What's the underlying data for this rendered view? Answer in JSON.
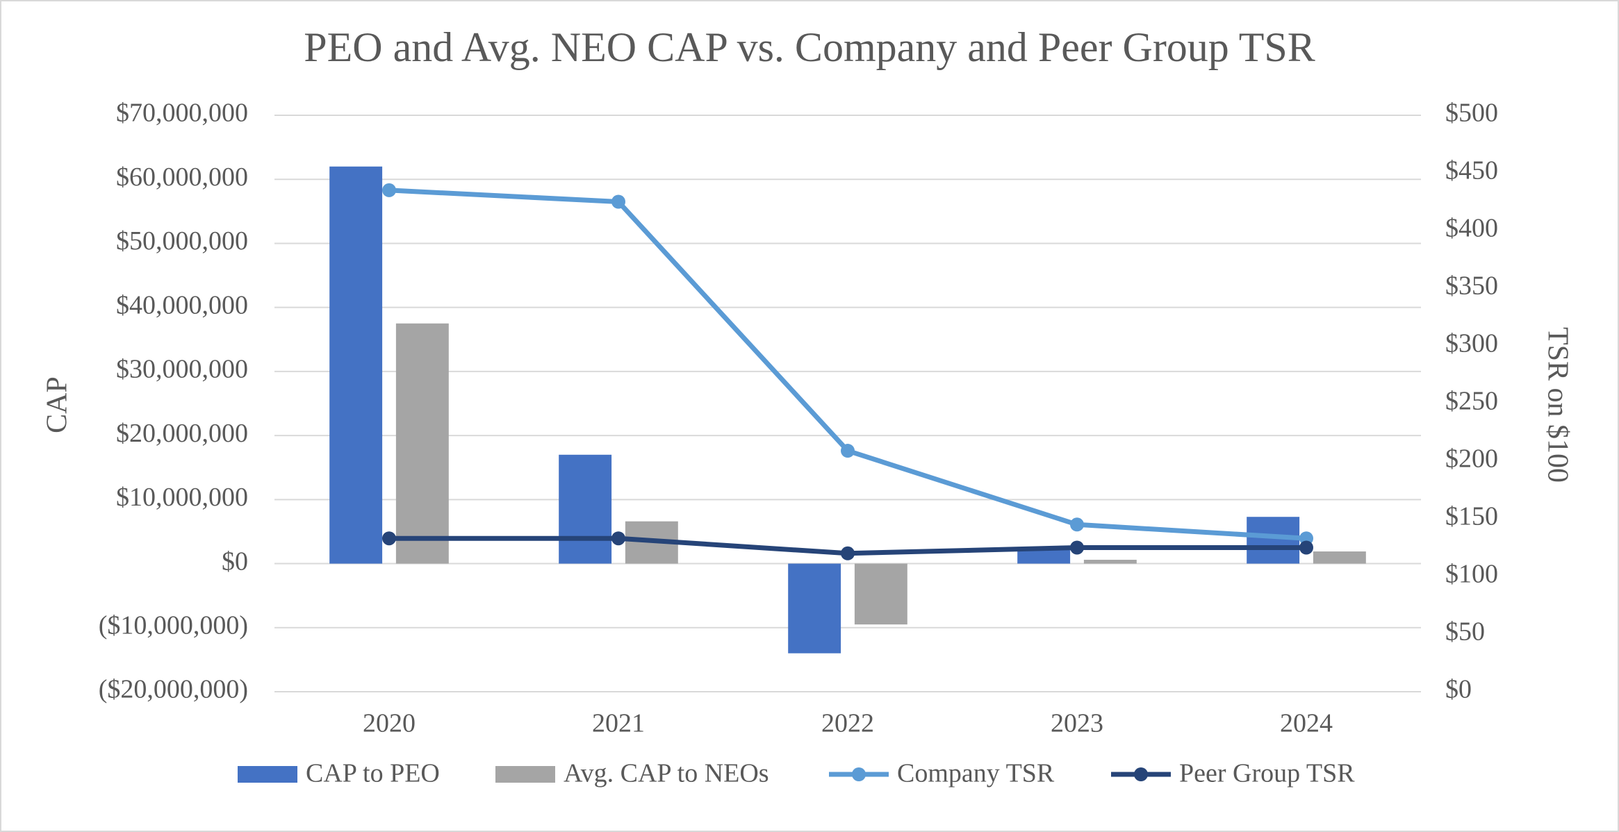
{
  "chart_data": {
    "type": "bar",
    "title": "PEO and Avg. NEO CAP vs. Company and Peer Group TSR",
    "y_label": "CAP",
    "y2_label": "TSR on $100",
    "categories": [
      "2020",
      "2021",
      "2022",
      "2023",
      "2024"
    ],
    "series": [
      {
        "name": "CAP to PEO",
        "type": "bar",
        "color": "#4472c4",
        "values": [
          62000000,
          17000000,
          -14000000,
          2500000,
          7300000
        ]
      },
      {
        "name": "Avg. CAP to NEOs",
        "type": "bar",
        "color": "#a5a5a5",
        "values": [
          37500000,
          6600000,
          -9500000,
          600000,
          1900000
        ]
      },
      {
        "name": "Company TSR",
        "type": "line",
        "axis": "y2",
        "color": "#5b9bd5",
        "values": [
          435,
          425,
          209,
          145,
          133
        ]
      },
      {
        "name": "Peer Group TSR",
        "type": "line",
        "axis": "y2",
        "color": "#264478",
        "values": [
          133,
          133,
          120,
          125,
          125
        ]
      }
    ],
    "ylim": [
      -20000000,
      70000000
    ],
    "yticks": [
      {
        "value": -20000000,
        "label": "($20,000,000)"
      },
      {
        "value": -10000000,
        "label": "($10,000,000)"
      },
      {
        "value": 0,
        "label": "$0"
      },
      {
        "value": 10000000,
        "label": "$10,000,000"
      },
      {
        "value": 20000000,
        "label": "$20,000,000"
      },
      {
        "value": 30000000,
        "label": "$30,000,000"
      },
      {
        "value": 40000000,
        "label": "$40,000,000"
      },
      {
        "value": 50000000,
        "label": "$50,000,000"
      },
      {
        "value": 60000000,
        "label": "$60,000,000"
      },
      {
        "value": 70000000,
        "label": "$70,000,000"
      }
    ],
    "y2lim": [
      0,
      500
    ],
    "y2ticks": [
      {
        "value": 0,
        "label": "$0"
      },
      {
        "value": 50,
        "label": "$50"
      },
      {
        "value": 100,
        "label": "$100"
      },
      {
        "value": 150,
        "label": "$150"
      },
      {
        "value": 200,
        "label": "$200"
      },
      {
        "value": 250,
        "label": "$250"
      },
      {
        "value": 300,
        "label": "$300"
      },
      {
        "value": 350,
        "label": "$350"
      },
      {
        "value": 400,
        "label": "$400"
      },
      {
        "value": 450,
        "label": "$450"
      },
      {
        "value": 500,
        "label": "$500"
      }
    ],
    "grid": true,
    "legend": "bottom"
  }
}
